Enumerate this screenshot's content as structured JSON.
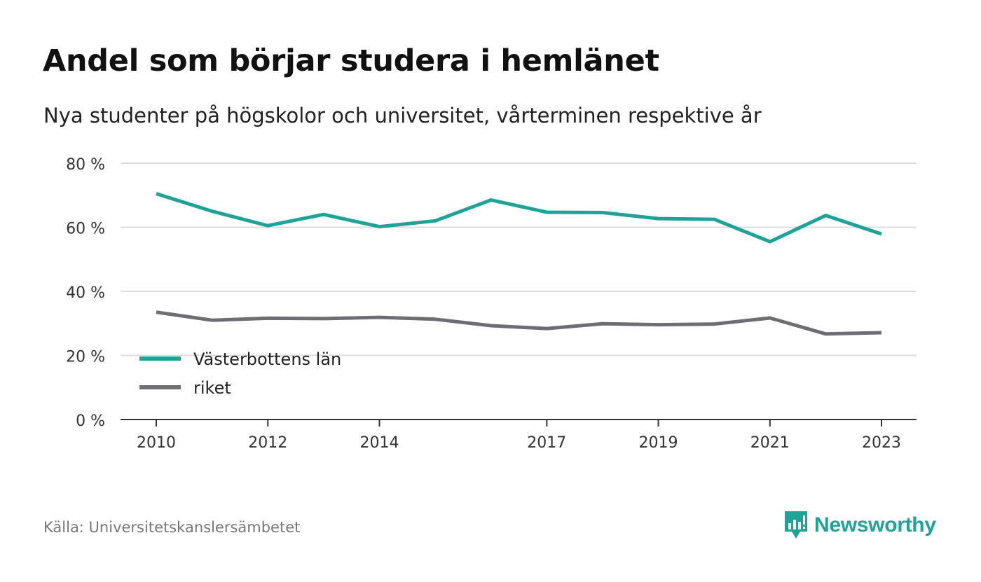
{
  "title": "Andel som börjar studera i hemlänet",
  "subtitle": "Nya studenter på högskolor och universitet, vårterminen respektive år",
  "source": "Källa: Universitetskanslersämbetet",
  "brand": {
    "name": "Newsworthy",
    "icon": "newsworthy-logo-icon",
    "color": "#1fa397"
  },
  "chart_data": {
    "type": "line",
    "x": [
      2010,
      2011,
      2012,
      2013,
      2014,
      2015,
      2016,
      2017,
      2018,
      2019,
      2020,
      2021,
      2022,
      2023
    ],
    "x_tick_labels": [
      "2010",
      "2012",
      "2014",
      "2017",
      "2019",
      "2021",
      "2023"
    ],
    "y_tick_labels": [
      "0 %",
      "20 %",
      "40 %",
      "60 %",
      "80 %"
    ],
    "y_ticks": [
      0,
      20,
      40,
      60,
      80
    ],
    "ylim": [
      0,
      80
    ],
    "grid": true,
    "legend_position": "bottom-left",
    "series": [
      {
        "name": "Västerbottens län",
        "color": "#1fa397",
        "values": [
          70.5,
          65.0,
          60.5,
          64.0,
          60.2,
          62.0,
          68.5,
          64.7,
          64.6,
          62.7,
          62.5,
          55.5,
          63.7,
          57.9
        ]
      },
      {
        "name": "riket",
        "color": "#6e6d75",
        "values": [
          33.5,
          31.0,
          31.6,
          31.5,
          31.9,
          31.3,
          29.3,
          28.4,
          29.9,
          29.6,
          29.8,
          31.7,
          26.7,
          27.1
        ]
      }
    ]
  }
}
